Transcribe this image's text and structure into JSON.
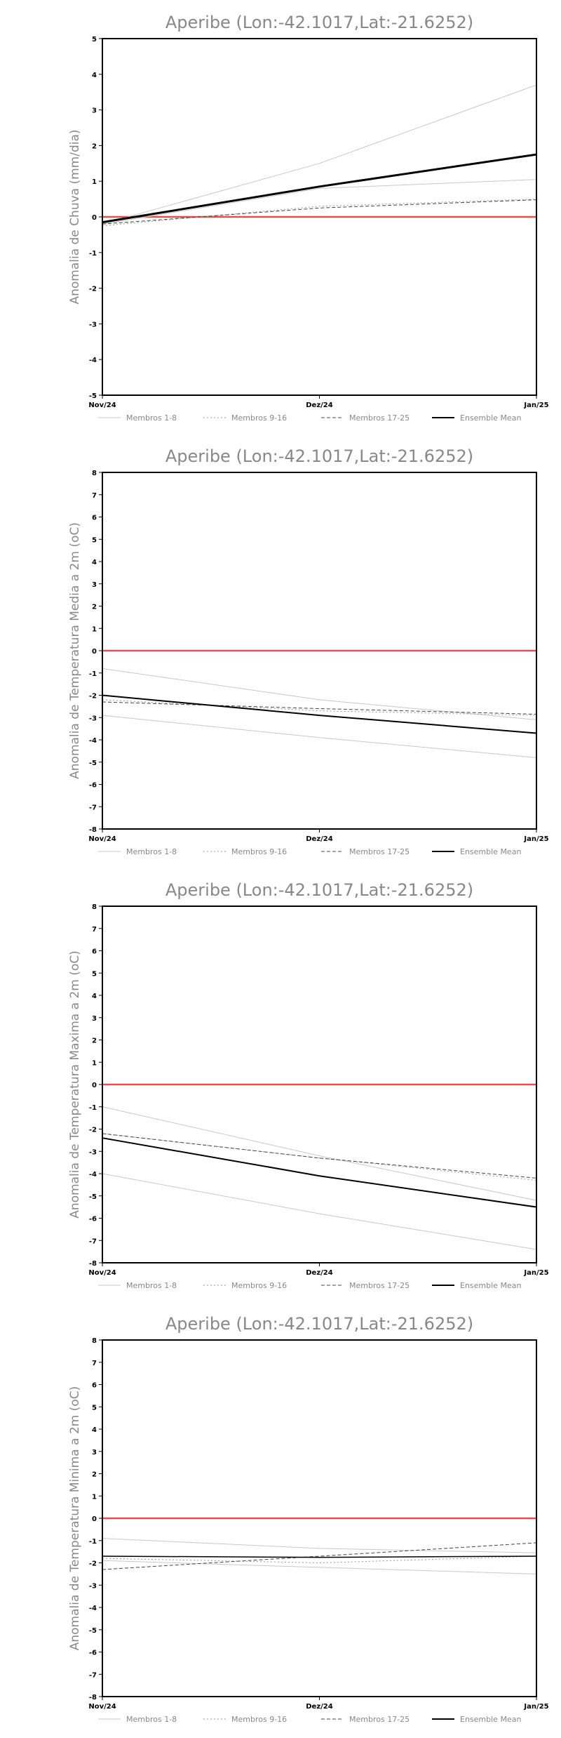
{
  "chart_data": [
    {
      "type": "line",
      "title": "Aperibe (Lon:-42.1017,Lat:-21.6252)",
      "ylabel": "Anomalia de Chuva (mm/dia)",
      "xlabel": "",
      "categories": [
        "Nov/24",
        "Dez/24",
        "Jan/25"
      ],
      "ylim": [
        -5,
        5
      ],
      "yticks": [
        -5,
        -4,
        -3,
        -2,
        -1,
        0,
        1,
        2,
        3,
        4,
        5
      ],
      "reference_line": {
        "value": 0,
        "color": "#e05050"
      },
      "grid": false,
      "legend": {
        "placement": "bottom",
        "entries": [
          "Membros 1-8",
          "Membros 9-16",
          "Membros 17-25",
          "Ensemble Mean"
        ]
      },
      "series": [
        {
          "name": "Membros 1-8",
          "values": [
            -0.2,
            1.5,
            3.7
          ],
          "color": "#c8c8c8",
          "dash": "solid",
          "width": 1
        },
        {
          "name": "Membros 1-8",
          "values": [
            -0.2,
            0.8,
            1.05
          ],
          "color": "#c8c8c8",
          "dash": "solid",
          "width": 1
        },
        {
          "name": "Membros 9-16",
          "values": [
            -0.25,
            0.3,
            0.5
          ],
          "color": "#999999",
          "dash": "dotted",
          "width": 1
        },
        {
          "name": "Membros 17-25",
          "values": [
            -0.2,
            0.25,
            0.48
          ],
          "color": "#444444",
          "dash": "dashed",
          "width": 1
        },
        {
          "name": "Ensemble Mean",
          "values": [
            -0.15,
            0.85,
            1.75
          ],
          "color": "#000000",
          "dash": "solid",
          "width": 3
        }
      ]
    },
    {
      "type": "line",
      "title": "Aperibe (Lon:-42.1017,Lat:-21.6252)",
      "ylabel": "Anomalia de Temperatura Media a 2m (oC)",
      "xlabel": "",
      "categories": [
        "Nov/24",
        "Dez/24",
        "Jan/25"
      ],
      "ylim": [
        -8,
        8
      ],
      "yticks": [
        -8,
        -7,
        -6,
        -5,
        -4,
        -3,
        -2,
        -1,
        0,
        1,
        2,
        3,
        4,
        5,
        6,
        7,
        8
      ],
      "reference_line": {
        "value": 0,
        "color": "#e05050"
      },
      "grid": false,
      "legend": {
        "placement": "bottom",
        "entries": [
          "Membros 1-8",
          "Membros 9-16",
          "Membros 17-25",
          "Ensemble Mean"
        ]
      },
      "series": [
        {
          "name": "Membros 1-8",
          "values": [
            -0.8,
            -2.2,
            -3.1
          ],
          "color": "#c8c8c8",
          "dash": "solid",
          "width": 1
        },
        {
          "name": "Membros 1-8",
          "values": [
            -2.9,
            -3.9,
            -4.8
          ],
          "color": "#c8c8c8",
          "dash": "solid",
          "width": 1
        },
        {
          "name": "Membros 9-16",
          "values": [
            -2.2,
            -2.7,
            -2.9
          ],
          "color": "#999999",
          "dash": "dotted",
          "width": 1
        },
        {
          "name": "Membros 17-25",
          "values": [
            -2.3,
            -2.6,
            -2.85
          ],
          "color": "#444444",
          "dash": "dashed",
          "width": 1
        },
        {
          "name": "Ensemble Mean",
          "values": [
            -2.0,
            -2.9,
            -3.7
          ],
          "color": "#000000",
          "dash": "solid",
          "width": 2
        }
      ]
    },
    {
      "type": "line",
      "title": "Aperibe (Lon:-42.1017,Lat:-21.6252)",
      "ylabel": "Anomalia de Temperatura Maxima a 2m (oC)",
      "xlabel": "",
      "categories": [
        "Nov/24",
        "Dez/24",
        "Jan/25"
      ],
      "ylim": [
        -8,
        8
      ],
      "yticks": [
        -8,
        -7,
        -6,
        -5,
        -4,
        -3,
        -2,
        -1,
        0,
        1,
        2,
        3,
        4,
        5,
        6,
        7,
        8
      ],
      "reference_line": {
        "value": 0,
        "color": "#e05050"
      },
      "grid": false,
      "legend": {
        "placement": "bottom",
        "entries": [
          "Membros 1-8",
          "Membros 9-16",
          "Membros 17-25",
          "Ensemble Mean"
        ]
      },
      "series": [
        {
          "name": "Membros 1-8",
          "values": [
            -1.0,
            -3.2,
            -5.2
          ],
          "color": "#c8c8c8",
          "dash": "solid",
          "width": 1
        },
        {
          "name": "Membros 1-8",
          "values": [
            -4.0,
            -5.8,
            -7.4
          ],
          "color": "#c8c8c8",
          "dash": "solid",
          "width": 1
        },
        {
          "name": "Membros 9-16",
          "values": [
            -2.2,
            -3.3,
            -4.3
          ],
          "color": "#999999",
          "dash": "dotted",
          "width": 1
        },
        {
          "name": "Membros 17-25",
          "values": [
            -2.2,
            -3.3,
            -4.2
          ],
          "color": "#444444",
          "dash": "dashed",
          "width": 1
        },
        {
          "name": "Ensemble Mean",
          "values": [
            -2.4,
            -4.1,
            -5.5
          ],
          "color": "#000000",
          "dash": "solid",
          "width": 2
        }
      ]
    },
    {
      "type": "line",
      "title": "Aperibe (Lon:-42.1017,Lat:-21.6252)",
      "ylabel": "Anomalia de Temperatura Minima a 2m (oC)",
      "xlabel": "",
      "categories": [
        "Nov/24",
        "Dez/24",
        "Jan/25"
      ],
      "ylim": [
        -8,
        8
      ],
      "yticks": [
        -8,
        -7,
        -6,
        -5,
        -4,
        -3,
        -2,
        -1,
        0,
        1,
        2,
        3,
        4,
        5,
        6,
        7,
        8
      ],
      "reference_line": {
        "value": 0,
        "color": "#e05050"
      },
      "grid": false,
      "legend": {
        "placement": "bottom",
        "entries": [
          "Membros 1-8",
          "Membros 9-16",
          "Membros 17-25",
          "Ensemble Mean"
        ]
      },
      "series": [
        {
          "name": "Membros 1-8",
          "values": [
            -0.9,
            -1.35,
            -1.55
          ],
          "color": "#c8c8c8",
          "dash": "solid",
          "width": 1
        },
        {
          "name": "Membros 1-8",
          "values": [
            -1.9,
            -2.2,
            -2.5
          ],
          "color": "#c8c8c8",
          "dash": "solid",
          "width": 1
        },
        {
          "name": "Membros 9-16",
          "values": [
            -1.8,
            -2.0,
            -1.7
          ],
          "color": "#999999",
          "dash": "dotted",
          "width": 1
        },
        {
          "name": "Membros 17-25",
          "values": [
            -2.3,
            -1.7,
            -1.1
          ],
          "color": "#444444",
          "dash": "dashed",
          "width": 1
        },
        {
          "name": "Ensemble Mean",
          "values": [
            -1.7,
            -1.75,
            -1.7
          ],
          "color": "#000000",
          "dash": "solid",
          "width": 1.5
        }
      ]
    }
  ]
}
